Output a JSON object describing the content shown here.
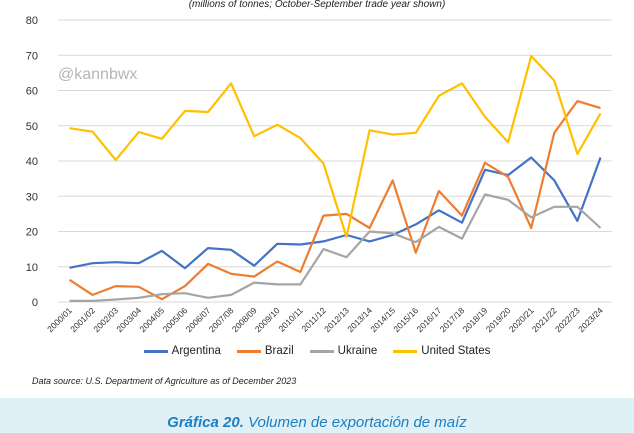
{
  "caption": {
    "label": "Gráfica 20.",
    "text": "Volumen de exportación de maíz"
  },
  "chart_data": {
    "type": "line",
    "subtitle": "(millions of tonnes; October-September trade year shown)",
    "watermark": "@kannbwx",
    "source": "Data source: U.S. Department of Agriculture as of December 2023",
    "ylim": [
      0,
      80
    ],
    "yticks": [
      0,
      10,
      20,
      30,
      40,
      50,
      60,
      70,
      80
    ],
    "grid": true,
    "legend_position": "bottom",
    "categories": [
      "2000/01",
      "2001/02",
      "2002/03",
      "2003/04",
      "2004/05",
      "2005/06",
      "2006/07",
      "2007/08",
      "2008/09",
      "2009/10",
      "2010/11",
      "2011/12",
      "2012/13",
      "2013/14",
      "2014/15",
      "2015/16",
      "2016/17",
      "2017/18",
      "2018/19",
      "2019/20",
      "2020/21",
      "2021/22",
      "2022/23",
      "2023/24"
    ],
    "series": [
      {
        "name": "Argentina",
        "color": "#4472c4",
        "values": [
          9.7,
          11,
          11.3,
          11,
          14.5,
          9.6,
          15.3,
          14.8,
          10.3,
          16.5,
          16.3,
          17.2,
          19,
          17.2,
          19,
          22,
          26,
          22.5,
          37.5,
          36,
          41,
          34.5,
          23,
          41
        ]
      },
      {
        "name": "Brazil",
        "color": "#ed7d31",
        "values": [
          6.3,
          2,
          4.5,
          4.3,
          0.8,
          4.5,
          10.8,
          8,
          7.2,
          11.5,
          8.5,
          24.5,
          25,
          21,
          34.5,
          14,
          31.5,
          24.5,
          39.5,
          35.5,
          21,
          48,
          57,
          55
        ]
      },
      {
        "name": "Ukraine",
        "color": "#a5a5a5",
        "values": [
          0.3,
          0.3,
          0.7,
          1.2,
          2.2,
          2.5,
          1.2,
          2,
          5.5,
          5,
          5,
          15,
          12.7,
          20,
          19.5,
          17,
          21.3,
          18,
          30.5,
          29,
          24,
          27,
          27,
          21
        ]
      },
      {
        "name": "United States",
        "color": "#ffc000",
        "values": [
          49.3,
          48.3,
          40.3,
          48.2,
          46.3,
          54.2,
          53.9,
          62,
          47,
          50.3,
          46.5,
          39.3,
          18.5,
          48.7,
          47.5,
          48,
          58.5,
          62,
          52.5,
          45.3,
          69.8,
          62.8,
          42,
          53.5
        ]
      }
    ]
  }
}
